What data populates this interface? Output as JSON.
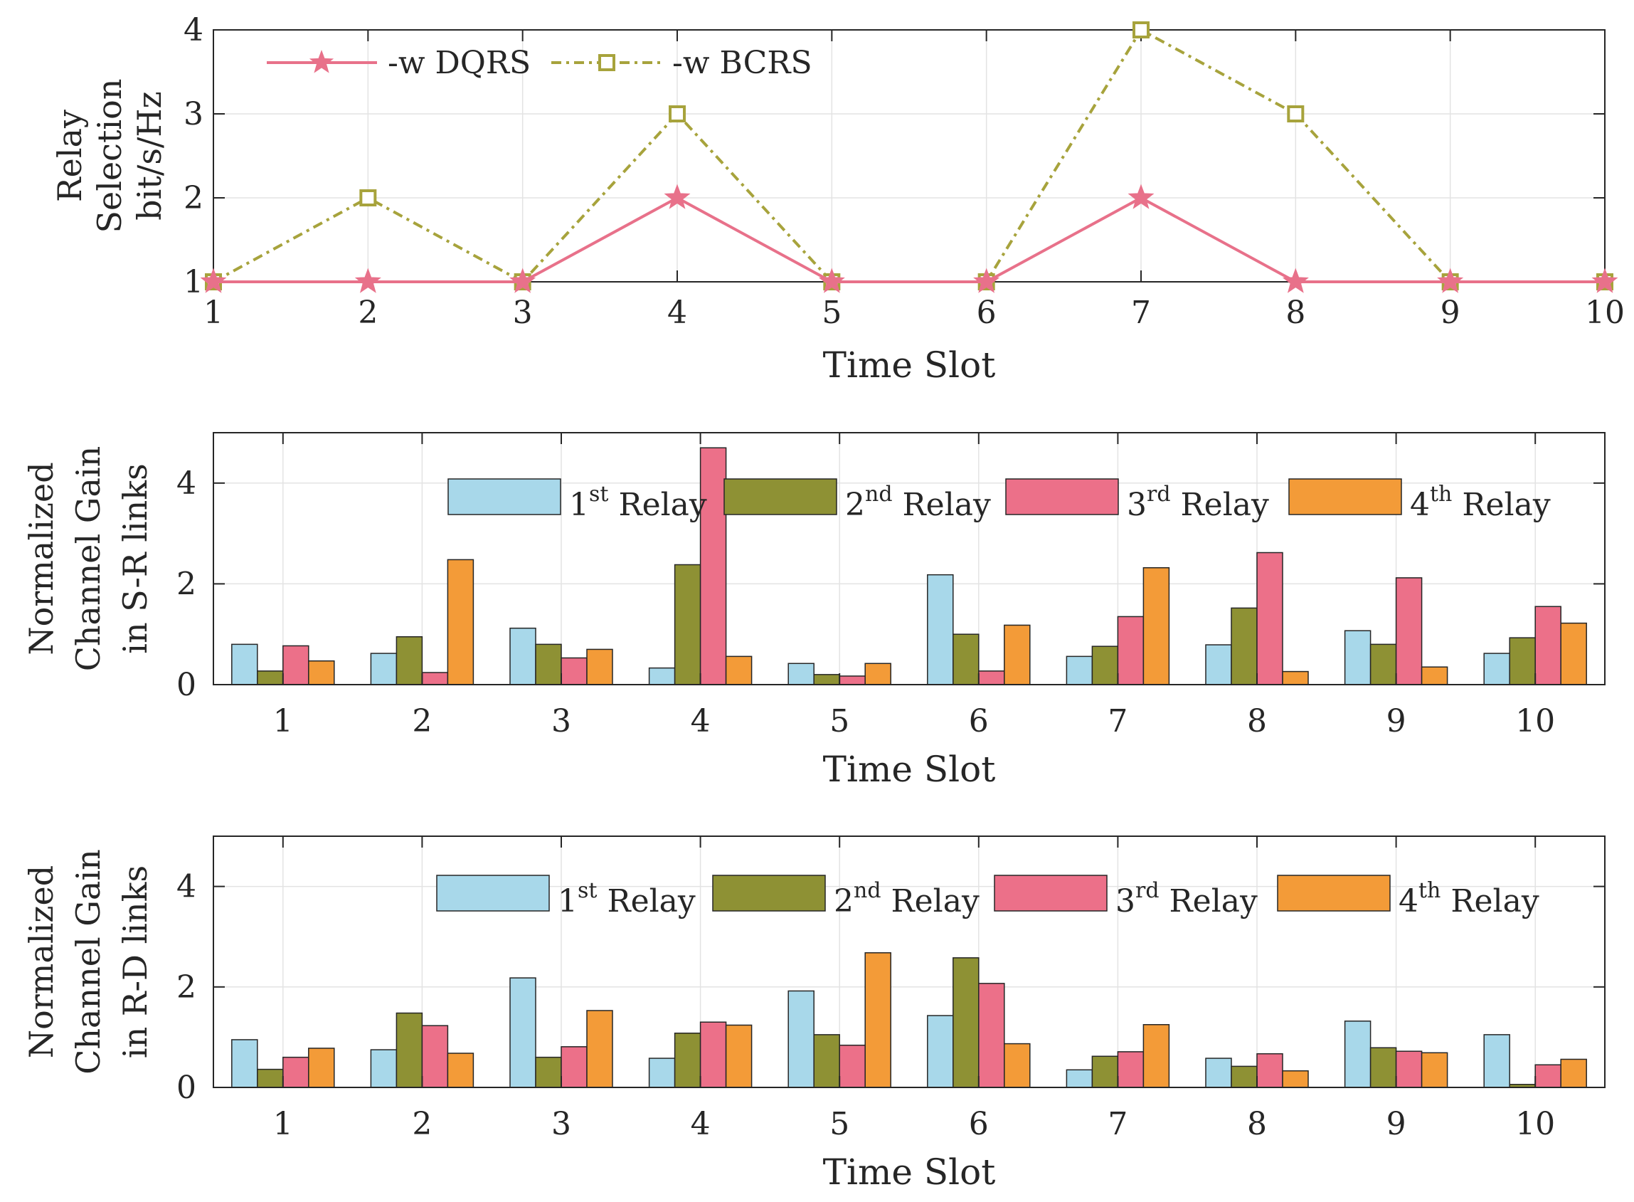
{
  "chart_data": [
    {
      "type": "line",
      "xlabel": "Time Slot",
      "ylabel_lines": [
        "Relay",
        "Selection",
        "bit/s/Hz"
      ],
      "x": [
        1,
        2,
        3,
        4,
        5,
        6,
        7,
        8,
        9,
        10
      ],
      "xticks": [
        "1",
        "2",
        "3",
        "4",
        "5",
        "6",
        "7",
        "8",
        "9",
        "10"
      ],
      "yticks": [
        "1",
        "2",
        "3",
        "4"
      ],
      "xlim": [
        1,
        10
      ],
      "ylim": [
        1,
        4
      ],
      "grid": true,
      "legend_position": "top-left",
      "series": [
        {
          "name": "-w DQRS",
          "marker": "star",
          "line": "solid",
          "color": "#e8718a",
          "values": [
            1,
            1,
            1,
            2,
            1,
            1,
            2,
            1,
            1,
            1
          ]
        },
        {
          "name": "-w BCRS",
          "marker": "square",
          "line": "dash-dot",
          "color": "#a7a33c",
          "values": [
            1,
            2,
            1,
            3,
            1,
            1,
            4,
            3,
            1,
            1
          ]
        }
      ]
    },
    {
      "type": "bar",
      "xlabel": "Time Slot",
      "ylabel_lines": [
        "Normalized",
        "Channel Gain",
        "in S-R links"
      ],
      "categories": [
        "1",
        "2",
        "3",
        "4",
        "5",
        "6",
        "7",
        "8",
        "9",
        "10"
      ],
      "yticks": [
        "0",
        "2",
        "4"
      ],
      "ylim": [
        0,
        5
      ],
      "grid": true,
      "legend_position": "top",
      "series": [
        {
          "name": "1st Relay",
          "legend_pre": "1",
          "legend_sup": "st",
          "legend_post": " Relay",
          "color": "#a8d8ea",
          "values": [
            0.8,
            0.62,
            1.12,
            0.33,
            0.42,
            2.18,
            0.56,
            0.79,
            1.07,
            0.62
          ]
        },
        {
          "name": "2nd Relay",
          "legend_pre": "2",
          "legend_sup": "nd",
          "legend_post": " Relay",
          "color": "#8e9134",
          "values": [
            0.27,
            0.95,
            0.8,
            2.38,
            0.2,
            1.0,
            0.76,
            1.52,
            0.8,
            0.93
          ]
        },
        {
          "name": "3rd Relay",
          "legend_pre": "3",
          "legend_sup": "rd",
          "legend_post": " Relay",
          "color": "#ec7089",
          "values": [
            0.77,
            0.24,
            0.53,
            4.7,
            0.17,
            0.27,
            1.35,
            2.62,
            2.12,
            1.55
          ]
        },
        {
          "name": "4th Relay",
          "legend_pre": "4",
          "legend_sup": "th",
          "legend_post": " Relay",
          "color": "#f39b38",
          "values": [
            0.47,
            2.48,
            0.7,
            0.56,
            0.42,
            1.18,
            2.32,
            0.26,
            0.35,
            1.22
          ]
        }
      ]
    },
    {
      "type": "bar",
      "xlabel": "Time Slot",
      "ylabel_lines": [
        "Normalized",
        "Channel Gain",
        "in R-D links"
      ],
      "categories": [
        "1",
        "2",
        "3",
        "4",
        "5",
        "6",
        "7",
        "8",
        "9",
        "10"
      ],
      "yticks": [
        "0",
        "2",
        "4"
      ],
      "ylim": [
        0,
        5
      ],
      "grid": true,
      "legend_position": "top",
      "series": [
        {
          "name": "1st Relay",
          "legend_pre": "1",
          "legend_sup": "st",
          "legend_post": " Relay",
          "color": "#a8d8ea",
          "values": [
            0.95,
            0.75,
            2.18,
            0.58,
            1.92,
            1.43,
            0.35,
            0.58,
            1.32,
            1.05
          ]
        },
        {
          "name": "2nd Relay",
          "legend_pre": "2",
          "legend_sup": "nd",
          "legend_post": " Relay",
          "color": "#8e9134",
          "values": [
            0.36,
            1.48,
            0.6,
            1.08,
            1.05,
            2.58,
            0.62,
            0.42,
            0.79,
            0.06
          ]
        },
        {
          "name": "3rd Relay",
          "legend_pre": "3",
          "legend_sup": "rd",
          "legend_post": " Relay",
          "color": "#ec7089",
          "values": [
            0.6,
            1.23,
            0.81,
            1.3,
            0.84,
            2.07,
            0.71,
            0.67,
            0.72,
            0.45
          ]
        },
        {
          "name": "4th Relay",
          "legend_pre": "4",
          "legend_sup": "th",
          "legend_post": " Relay",
          "color": "#f39b38",
          "values": [
            0.78,
            0.68,
            1.53,
            1.24,
            2.68,
            0.87,
            1.25,
            0.33,
            0.69,
            0.56
          ]
        }
      ]
    }
  ]
}
